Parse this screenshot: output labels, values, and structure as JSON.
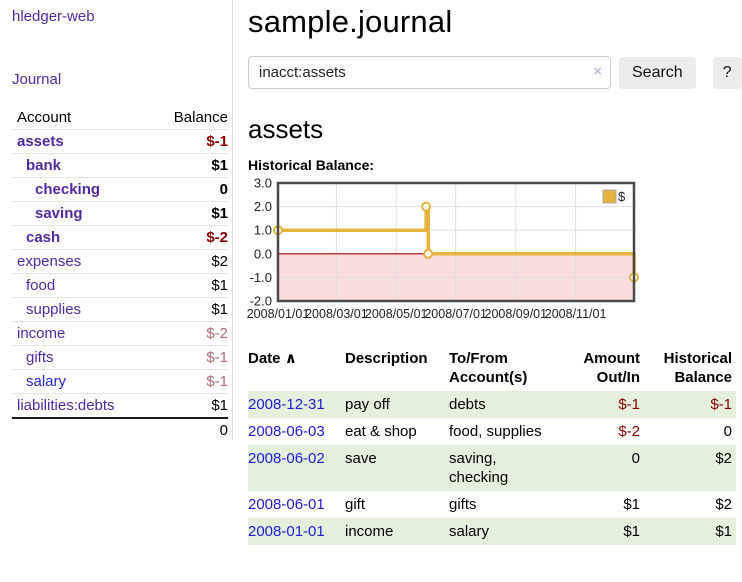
{
  "sidebar": {
    "brand": "hledger-web",
    "journal_link": "Journal",
    "header": {
      "account": "Account",
      "balance": "Balance"
    },
    "accounts": [
      {
        "name": "assets",
        "balance": "$-1"
      },
      {
        "name": "bank",
        "balance": "$1"
      },
      {
        "name": "checking",
        "balance": "0"
      },
      {
        "name": "saving",
        "balance": "$1"
      },
      {
        "name": "cash",
        "balance": "$-2"
      },
      {
        "name": "expenses",
        "balance": "$2"
      },
      {
        "name": "food",
        "balance": "$1"
      },
      {
        "name": "supplies",
        "balance": "$1"
      },
      {
        "name": "income",
        "balance": "$-2"
      },
      {
        "name": "gifts",
        "balance": "$-1"
      },
      {
        "name": "salary",
        "balance": "$-1"
      },
      {
        "name": "liabilities:debts",
        "balance": "$1"
      }
    ],
    "total": "0"
  },
  "main": {
    "title": "sample.journal",
    "search": {
      "value": "inacct:assets",
      "clear": "×",
      "button": "Search",
      "help": "?"
    },
    "account_heading": "assets",
    "chart_label": "Historical Balance:"
  },
  "chart_data": {
    "type": "line",
    "title": "Historical Balance",
    "series": [
      {
        "name": "$",
        "points": [
          {
            "date": "2008-01-01",
            "x": 0.0,
            "y": 1
          },
          {
            "date": "2008-06-01",
            "x": 0.416,
            "y": 2
          },
          {
            "date": "2008-06-03",
            "x": 0.422,
            "y": 0
          },
          {
            "date": "2008-12-31",
            "x": 1.0,
            "y": -1
          }
        ]
      }
    ],
    "step": true,
    "ylim": [
      -2,
      3
    ],
    "yticks": [
      3.0,
      2.0,
      1.0,
      0.0,
      -1.0,
      -2.0
    ],
    "xticks": [
      {
        "label": "2008/01/01",
        "x": 0.0
      },
      {
        "label": "2008/03/01",
        "x": 0.164
      },
      {
        "label": "2008/05/01",
        "x": 0.332
      },
      {
        "label": "2008/07/01",
        "x": 0.499
      },
      {
        "label": "2008/09/01",
        "x": 0.668
      },
      {
        "label": "2008/11/01",
        "x": 0.836
      }
    ],
    "legend": {
      "label": "$",
      "position": "top-right"
    },
    "grid": true,
    "colors": {
      "line": "#e6b33c",
      "marker_fill": "#ffffff",
      "negative_region": "#fbdddd",
      "zero_line": "#990000",
      "grid": "#dddddd",
      "border": "#4a4a4a",
      "legend_box": "#e6b33c"
    }
  },
  "register": {
    "headers": {
      "date": "Date",
      "sort_arrow": "∧",
      "description": "Description",
      "tofrom1": "To/From",
      "tofrom2": "Account(s)",
      "amount1": "Amount",
      "amount2": "Out/In",
      "hist1": "Historical",
      "hist2": "Balance"
    },
    "rows": [
      {
        "date": "2008-12-31",
        "description": "pay off",
        "accounts": "debts",
        "amount": "$-1",
        "balance": "$-1"
      },
      {
        "date": "2008-06-03",
        "description": "eat & shop",
        "accounts": "food, supplies",
        "amount": "$-2",
        "balance": "0"
      },
      {
        "date": "2008-06-02",
        "description": "save",
        "accounts": "saving,\nchecking",
        "amount": "0",
        "balance": "$2"
      },
      {
        "date": "2008-06-01",
        "description": "gift",
        "accounts": "gifts",
        "amount": "$1",
        "balance": "$2"
      },
      {
        "date": "2008-01-01",
        "description": "income",
        "accounts": "salary",
        "amount": "$1",
        "balance": "$1"
      }
    ]
  }
}
